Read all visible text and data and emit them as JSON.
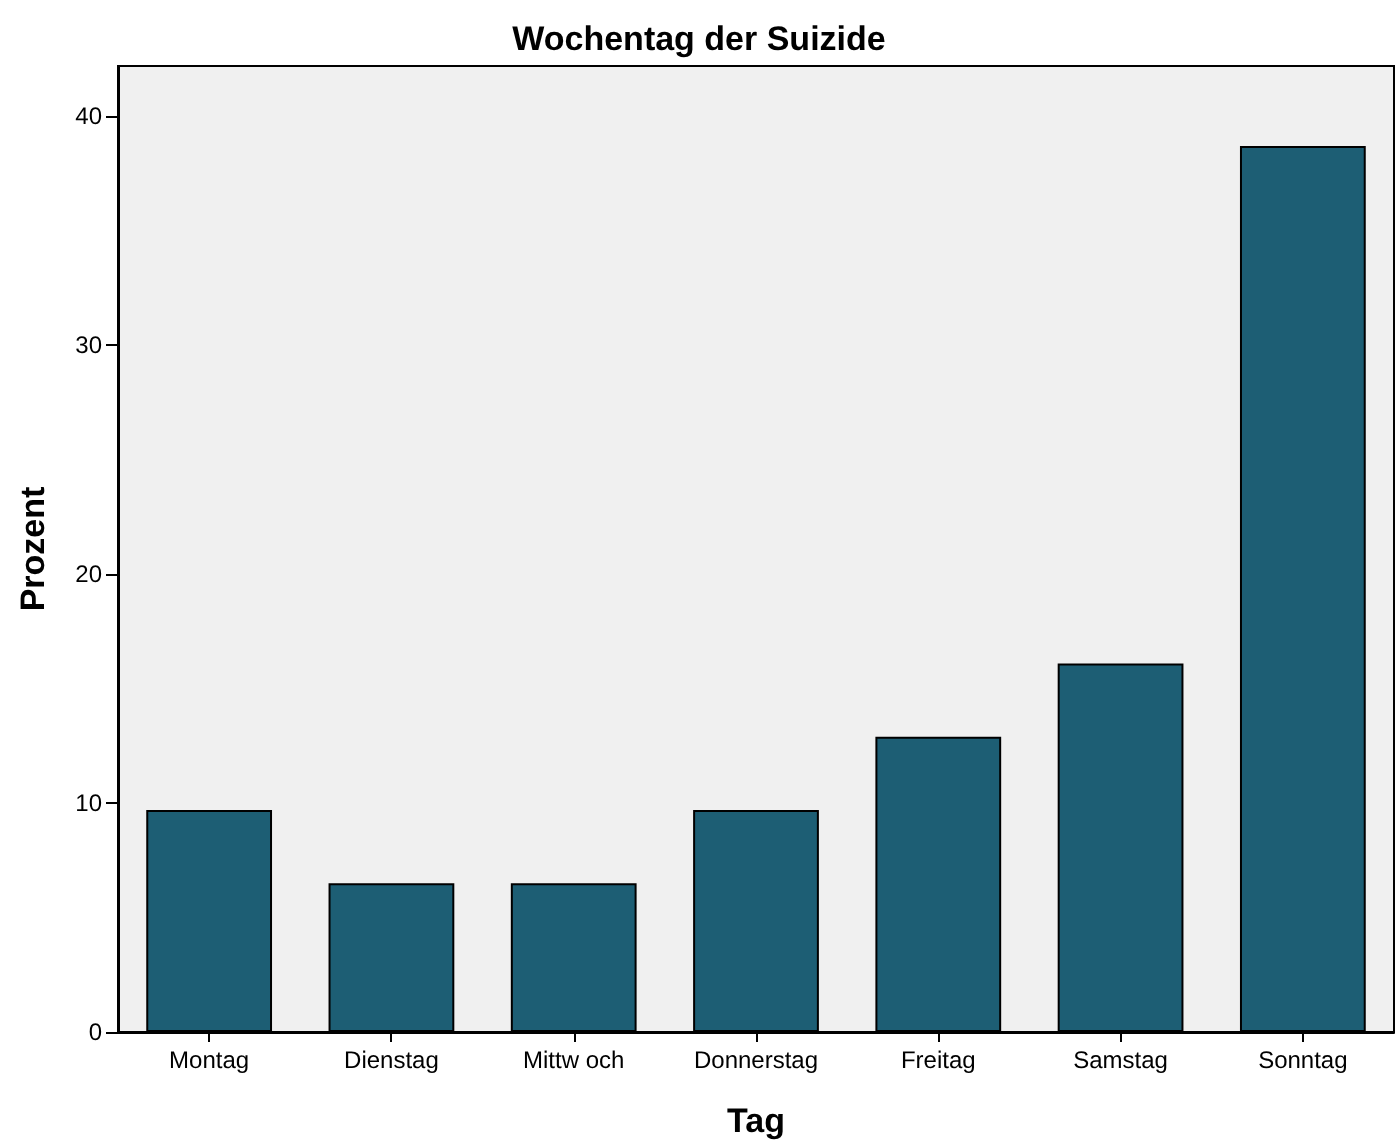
{
  "chart_data": {
    "type": "bar",
    "title": "Wochentag der Suizide",
    "xlabel": "Tag",
    "ylabel": "Prozent",
    "categories": [
      "Montag",
      "Dienstag",
      "Mittw och",
      "Donnerstag",
      "Freitag",
      "Samstag",
      "Sonntag"
    ],
    "values": [
      9.7,
      6.5,
      6.5,
      9.7,
      12.9,
      16.1,
      38.7
    ],
    "color": "#1d5e74",
    "ylim": [
      0,
      42.2
    ],
    "yticks": [
      0,
      10,
      20,
      30,
      40
    ],
    "grid": false
  }
}
